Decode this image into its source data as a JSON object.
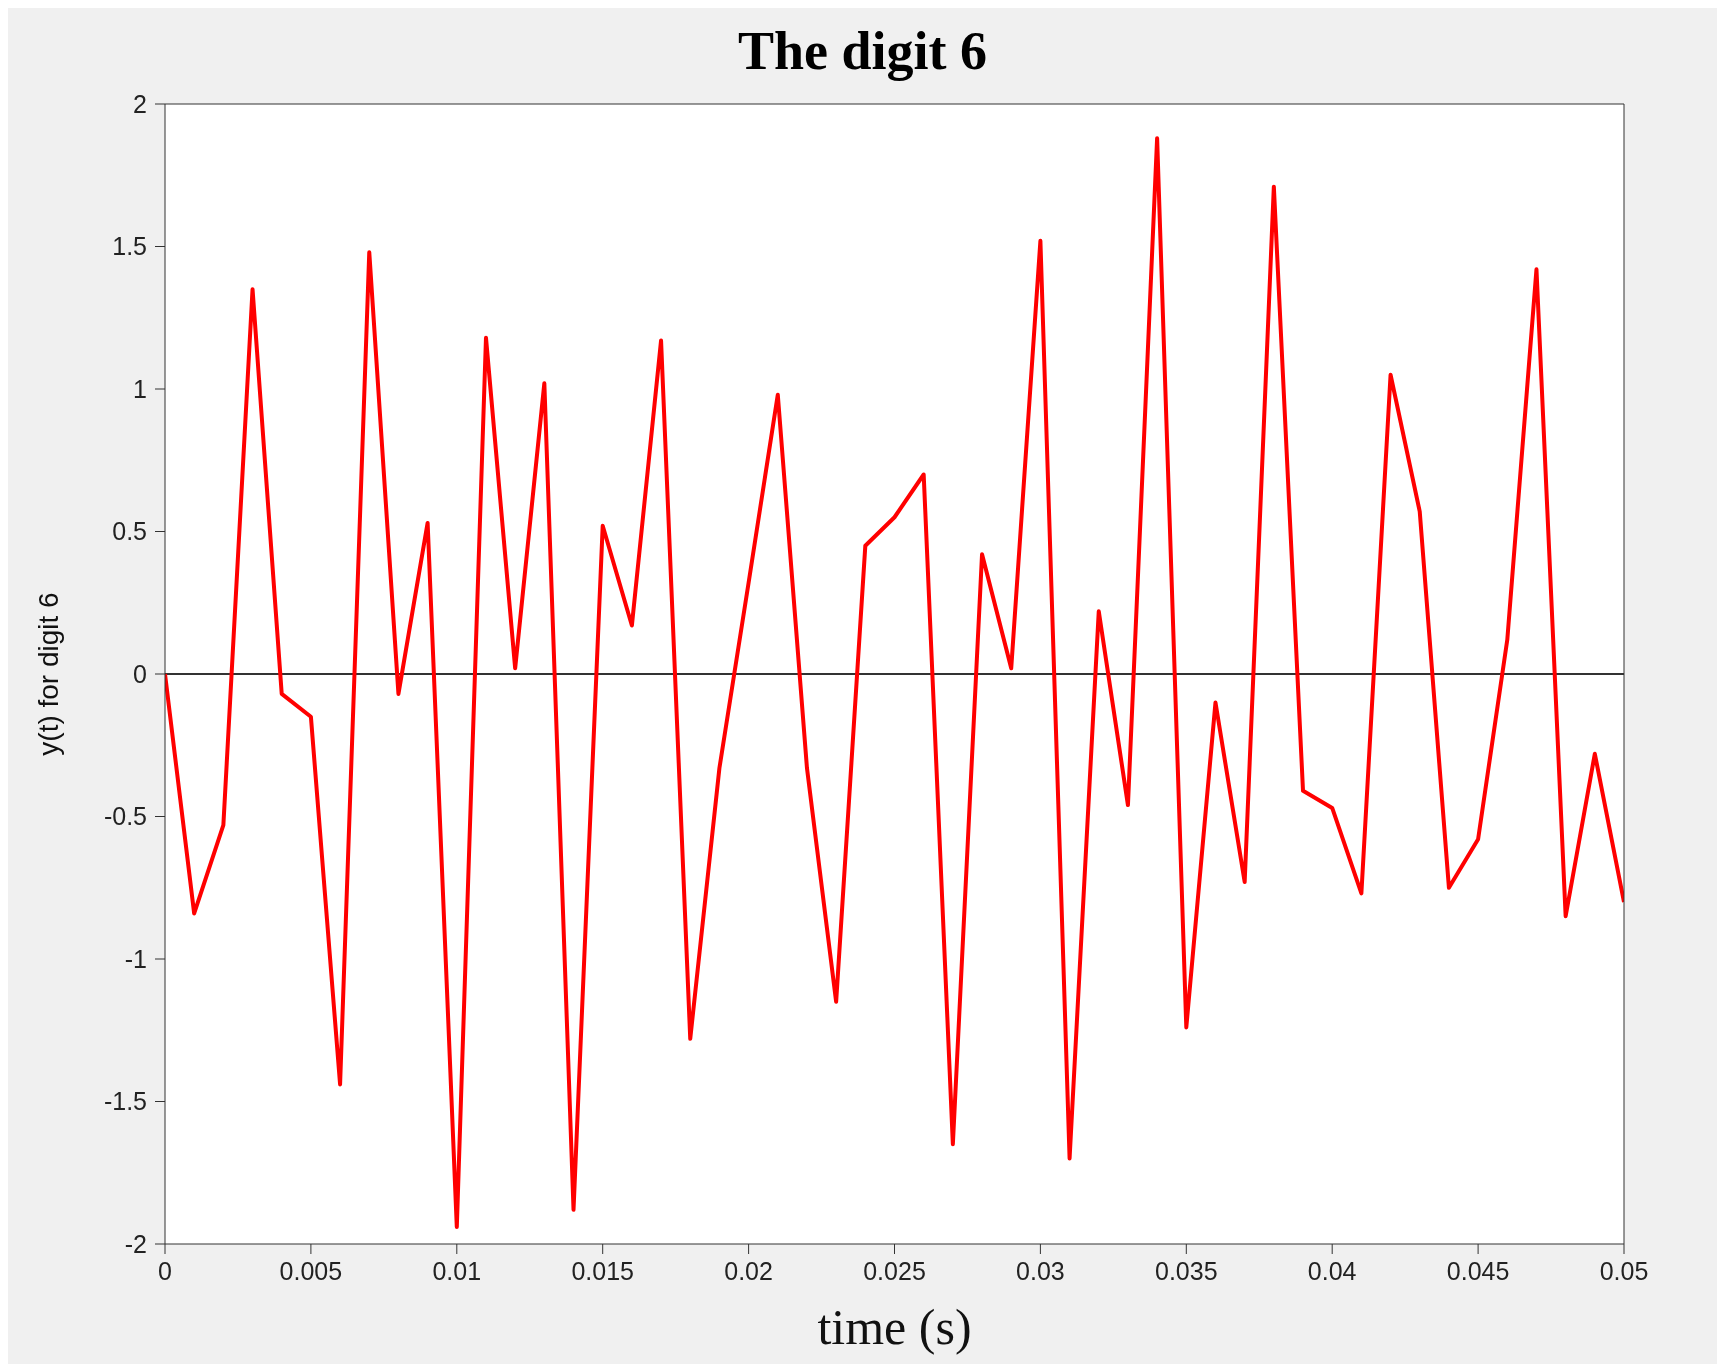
{
  "chart_data": {
    "type": "line",
    "title": "The digit 6",
    "xlabel": "time (s)",
    "ylabel": "y(t) for digit 6",
    "x": [
      0,
      0.001,
      0.002,
      0.003,
      0.004,
      0.005,
      0.006,
      0.007,
      0.008,
      0.009,
      0.01,
      0.011,
      0.012,
      0.013,
      0.014,
      0.015,
      0.016,
      0.017,
      0.018,
      0.019,
      0.02,
      0.021,
      0.022,
      0.023,
      0.024,
      0.025,
      0.026,
      0.027,
      0.028,
      0.029,
      0.03,
      0.031,
      0.032,
      0.033,
      0.034,
      0.035,
      0.036,
      0.037,
      0.038,
      0.039,
      0.04,
      0.041,
      0.042,
      0.043,
      0.044,
      0.045,
      0.046,
      0.047,
      0.048,
      0.049,
      0.05
    ],
    "series": [
      {
        "color": "#ff0000",
        "values": [
          0,
          -0.84,
          -0.53,
          1.35,
          -0.07,
          -0.15,
          -1.44,
          1.48,
          -0.07,
          0.53,
          -1.94,
          1.18,
          0.02,
          1.02,
          -1.88,
          0.52,
          0.17,
          1.17,
          -1.28,
          -0.33,
          0.32,
          0.98,
          -0.33,
          -1.15,
          0.45,
          0.55,
          0.7,
          -1.65,
          0.42,
          0.02,
          1.52,
          -1.7,
          0.22,
          -0.46,
          1.88,
          -1.24,
          -0.1,
          -0.73,
          1.71,
          -0.41,
          -0.47,
          -0.77,
          1.05,
          0.57,
          -0.75,
          -0.58,
          0.12,
          1.42,
          -0.85,
          -0.28,
          -0.8
        ]
      }
    ],
    "xlim": [
      0,
      0.05
    ],
    "xticks": [
      0,
      0.005,
      0.01,
      0.015,
      0.02,
      0.025,
      0.03,
      0.035,
      0.04,
      0.045,
      0.05
    ],
    "ylim": [
      -2,
      2
    ],
    "yticks": [
      -2,
      -1.5,
      -1,
      -0.5,
      0,
      0.5,
      1,
      1.5,
      2
    ],
    "ref_lines": [
      {
        "axis": "y",
        "value": 0,
        "color": "#333333"
      }
    ],
    "marker": "none",
    "line_style": "solid"
  }
}
